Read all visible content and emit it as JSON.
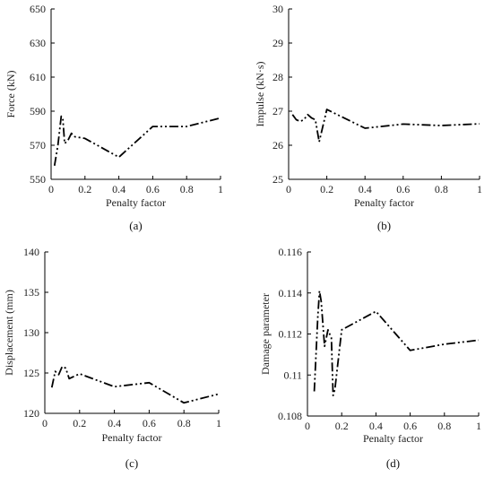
{
  "chart_data": [
    {
      "type": "line",
      "panel": "(a)",
      "xlabel": "Penalty factor",
      "ylabel": "Force (kN)",
      "xlim": [
        0,
        1
      ],
      "ylim": [
        550,
        650
      ],
      "xticks": [
        "0",
        "0.2",
        "0.4",
        "0.6",
        "0.8",
        "1"
      ],
      "yticks": [
        "550",
        "570",
        "590",
        "610",
        "630",
        "650"
      ],
      "series": [
        {
          "x": [
            0.02,
            0.04,
            0.06,
            0.07,
            0.08,
            0.1,
            0.12,
            0.14,
            0.2,
            0.4,
            0.6,
            0.8,
            1.0
          ],
          "y": [
            558,
            570,
            587,
            585,
            571,
            573,
            577,
            575,
            574,
            563,
            581,
            581,
            586
          ]
        }
      ]
    },
    {
      "type": "line",
      "panel": "(b)",
      "xlabel": "Penalty factor",
      "ylabel": "Impulse (kN·s)",
      "xlim": [
        0,
        1
      ],
      "ylim": [
        25,
        30
      ],
      "xticks": [
        "0",
        "0.2",
        "0.4",
        "0.6",
        "0.8",
        "1"
      ],
      "yticks": [
        "25",
        "26",
        "27",
        "28",
        "29",
        "30"
      ],
      "series": [
        {
          "x": [
            0.02,
            0.04,
            0.06,
            0.08,
            0.1,
            0.12,
            0.14,
            0.16,
            0.2,
            0.4,
            0.6,
            0.8,
            1.0
          ],
          "y": [
            26.9,
            26.75,
            26.7,
            26.75,
            26.9,
            26.8,
            26.75,
            26.1,
            27.05,
            26.5,
            26.62,
            26.58,
            26.63
          ]
        }
      ]
    },
    {
      "type": "line",
      "panel": "(c)",
      "xlabel": "Penalty factor",
      "ylabel": "Displacement (mm)",
      "xlim": [
        0,
        1
      ],
      "ylim": [
        120,
        140
      ],
      "xticks": [
        "0",
        "0.2",
        "0.4",
        "0.6",
        "0.8",
        "1"
      ],
      "yticks": [
        "120",
        "125",
        "130",
        "135",
        "140"
      ],
      "series": [
        {
          "x": [
            0.04,
            0.06,
            0.08,
            0.1,
            0.12,
            0.14,
            0.2,
            0.4,
            0.6,
            0.8,
            1.0
          ],
          "y": [
            123.2,
            125.2,
            124.8,
            125.8,
            125.6,
            124.3,
            124.9,
            123.3,
            123.8,
            121.3,
            122.4
          ]
        }
      ]
    },
    {
      "type": "line",
      "panel": "(d)",
      "xlabel": "Penalty factor",
      "ylabel": "Damage parameter",
      "xlim": [
        0,
        1
      ],
      "ylim": [
        0.108,
        0.116
      ],
      "xticks": [
        "0",
        "0.2",
        "0.4",
        "0.6",
        "0.8",
        "1"
      ],
      "yticks": [
        "0.108",
        "0.11",
        "0.112",
        "0.114",
        "0.116"
      ],
      "series": [
        {
          "x": [
            0.04,
            0.06,
            0.07,
            0.08,
            0.1,
            0.12,
            0.14,
            0.15,
            0.16,
            0.2,
            0.4,
            0.6,
            0.8,
            1.0
          ],
          "y": [
            0.1092,
            0.1128,
            0.1141,
            0.1136,
            0.1114,
            0.1122,
            0.1118,
            0.109,
            0.1093,
            0.1122,
            0.1131,
            0.1112,
            0.1115,
            0.1117
          ]
        }
      ]
    }
  ]
}
